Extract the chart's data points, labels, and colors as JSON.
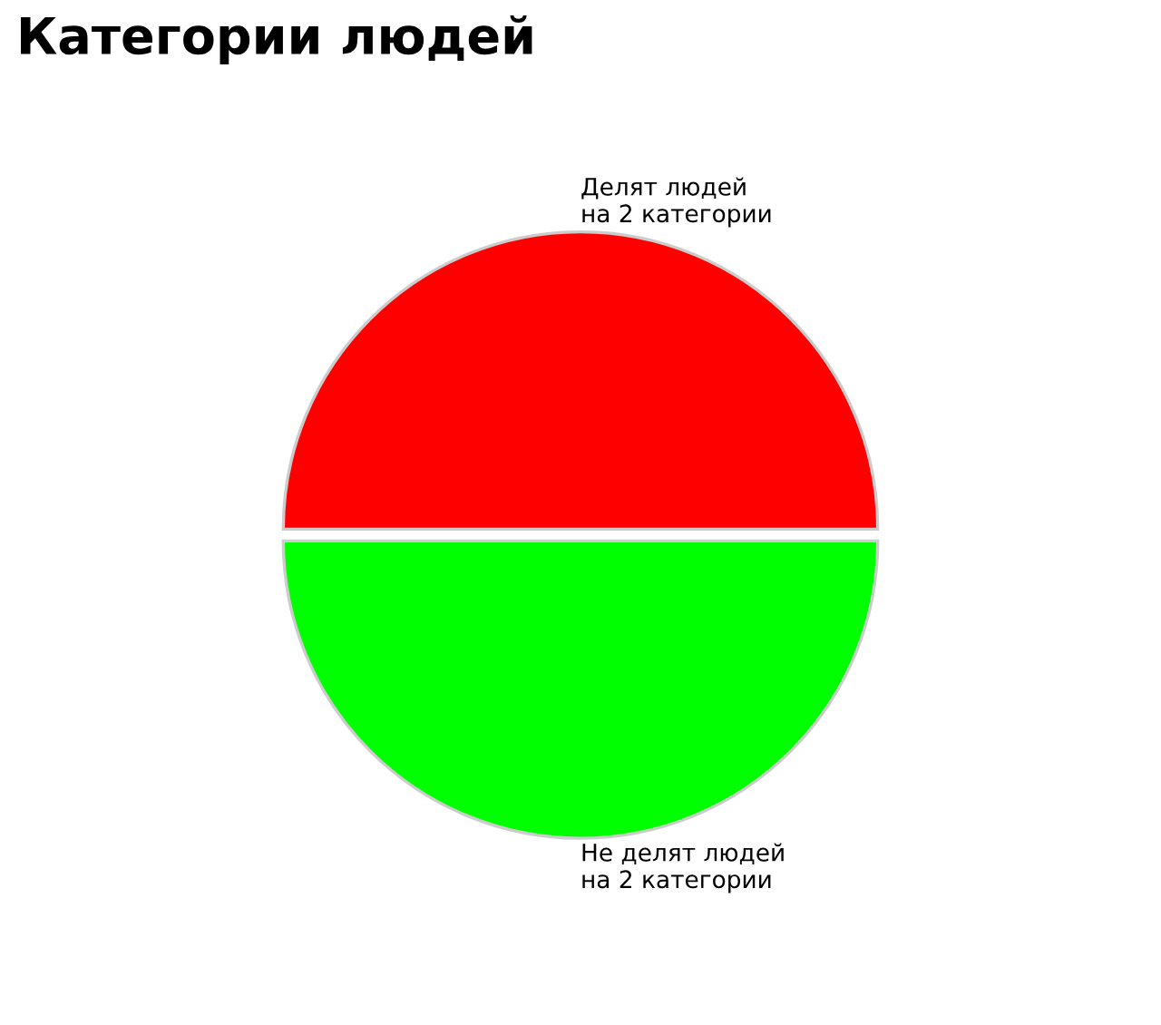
{
  "chart_data": {
    "type": "pie",
    "title": "Категории людей",
    "categories": [
      "Делят людей\nна 2 категории",
      "Не делят людей\nна 2 категории"
    ],
    "values": [
      50,
      50
    ],
    "colors": [
      "#ff0000",
      "#00ff00"
    ]
  }
}
